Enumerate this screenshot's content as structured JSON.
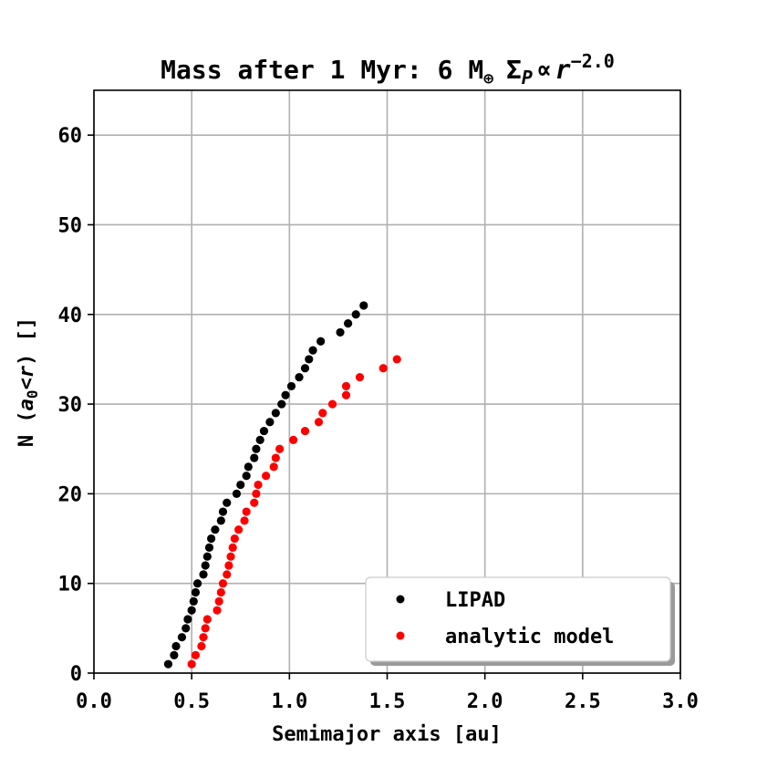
{
  "chart_data": {
    "type": "scatter",
    "title_main": "Mass after 1 Myr: 6 M",
    "title_earth_symbol": "⊕",
    "title_sigma": "Σ",
    "title_p": "P",
    "title_prop": "∝",
    "title_r": "r",
    "title_exponent": "−2.0",
    "xlabel": "Semimajor axis [au]",
    "ylabel_prefix": "N (",
    "ylabel_a": "a",
    "ylabel_sub": "0",
    "ylabel_lt": "<",
    "ylabel_r": "r",
    "ylabel_suffix": ") []",
    "xlim": [
      0.0,
      3.0
    ],
    "ylim": [
      0,
      65
    ],
    "xticks": [
      0.0,
      0.5,
      1.0,
      1.5,
      2.0,
      2.5,
      3.0
    ],
    "xtick_labels": [
      "0.0",
      "0.5",
      "1.0",
      "1.5",
      "2.0",
      "2.5",
      "3.0"
    ],
    "yticks": [
      0,
      10,
      20,
      30,
      40,
      50,
      60
    ],
    "ytick_labels": [
      "0",
      "10",
      "20",
      "30",
      "40",
      "50",
      "60"
    ],
    "grid": true,
    "legend_position": "lower-right",
    "series": [
      {
        "name": "LIPAD",
        "color": "#000000",
        "points": [
          [
            0.38,
            1
          ],
          [
            0.41,
            2
          ],
          [
            0.42,
            3
          ],
          [
            0.45,
            4
          ],
          [
            0.47,
            5
          ],
          [
            0.48,
            6
          ],
          [
            0.5,
            7
          ],
          [
            0.51,
            8
          ],
          [
            0.52,
            9
          ],
          [
            0.53,
            10
          ],
          [
            0.56,
            11
          ],
          [
            0.57,
            12
          ],
          [
            0.58,
            13
          ],
          [
            0.59,
            14
          ],
          [
            0.6,
            15
          ],
          [
            0.62,
            16
          ],
          [
            0.65,
            17
          ],
          [
            0.66,
            18
          ],
          [
            0.68,
            19
          ],
          [
            0.73,
            20
          ],
          [
            0.75,
            21
          ],
          [
            0.78,
            22
          ],
          [
            0.79,
            23
          ],
          [
            0.82,
            24
          ],
          [
            0.83,
            25
          ],
          [
            0.85,
            26
          ],
          [
            0.87,
            27
          ],
          [
            0.9,
            28
          ],
          [
            0.93,
            29
          ],
          [
            0.96,
            30
          ],
          [
            0.98,
            31
          ],
          [
            1.01,
            32
          ],
          [
            1.05,
            33
          ],
          [
            1.08,
            34
          ],
          [
            1.1,
            35
          ],
          [
            1.12,
            36
          ],
          [
            1.16,
            37
          ],
          [
            1.26,
            38
          ],
          [
            1.3,
            39
          ],
          [
            1.34,
            40
          ],
          [
            1.38,
            41
          ]
        ]
      },
      {
        "name": "analytic model",
        "color": "#ff0000",
        "points": [
          [
            0.5,
            1
          ],
          [
            0.52,
            2
          ],
          [
            0.55,
            3
          ],
          [
            0.56,
            4
          ],
          [
            0.57,
            5
          ],
          [
            0.58,
            6
          ],
          [
            0.63,
            7
          ],
          [
            0.64,
            8
          ],
          [
            0.65,
            9
          ],
          [
            0.66,
            10
          ],
          [
            0.68,
            11
          ],
          [
            0.69,
            12
          ],
          [
            0.7,
            13
          ],
          [
            0.71,
            14
          ],
          [
            0.72,
            15
          ],
          [
            0.74,
            16
          ],
          [
            0.77,
            17
          ],
          [
            0.78,
            18
          ],
          [
            0.82,
            19
          ],
          [
            0.83,
            20
          ],
          [
            0.84,
            21
          ],
          [
            0.88,
            22
          ],
          [
            0.92,
            23
          ],
          [
            0.93,
            24
          ],
          [
            0.95,
            25
          ],
          [
            1.02,
            26
          ],
          [
            1.08,
            27
          ],
          [
            1.15,
            28
          ],
          [
            1.17,
            29
          ],
          [
            1.22,
            30
          ],
          [
            1.29,
            31
          ],
          [
            1.29,
            32
          ],
          [
            1.36,
            33
          ],
          [
            1.48,
            34
          ],
          [
            1.55,
            35
          ]
        ]
      }
    ]
  }
}
